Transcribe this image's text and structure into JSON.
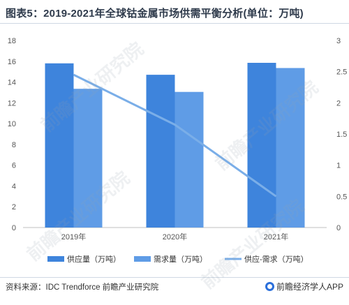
{
  "title": "图表5：2019-2021年全球钴金属市场供需平衡分析(单位：万吨)",
  "source": "资料来源：IDC Trendforce 前瞻产业研究院",
  "brand": "前瞻经济学人APP",
  "watermark": "前瞻产业研究院",
  "colors": {
    "supply": "#3e84dc",
    "demand": "#5f9ce6",
    "balance": "#7aaee8",
    "axis": "#888888",
    "grid": "#e6e6e6"
  },
  "chart_data": {
    "type": "bar",
    "categories": [
      "2019年",
      "2020年",
      "2021年"
    ],
    "series": [
      {
        "name": "供应量（万吨）",
        "values": [
          15.8,
          14.7,
          15.85
        ],
        "axis": "left",
        "kind": "bar"
      },
      {
        "name": "需求量（万吨）",
        "values": [
          13.35,
          13.05,
          15.35
        ],
        "axis": "left",
        "kind": "bar"
      },
      {
        "name": "供应-需求（万吨）",
        "values": [
          2.45,
          1.65,
          0.5
        ],
        "axis": "right",
        "kind": "line"
      }
    ],
    "yTicksLeft": [
      "0",
      "2",
      "4",
      "6",
      "8",
      "10",
      "12",
      "14",
      "16",
      "18"
    ],
    "yTicksRight": [
      "0",
      "0.5",
      "1",
      "1.5",
      "2",
      "2.5",
      "3"
    ],
    "ylim": [
      0,
      18
    ],
    "y2lim": [
      0,
      3
    ],
    "legend": "bottom",
    "grid": false
  }
}
